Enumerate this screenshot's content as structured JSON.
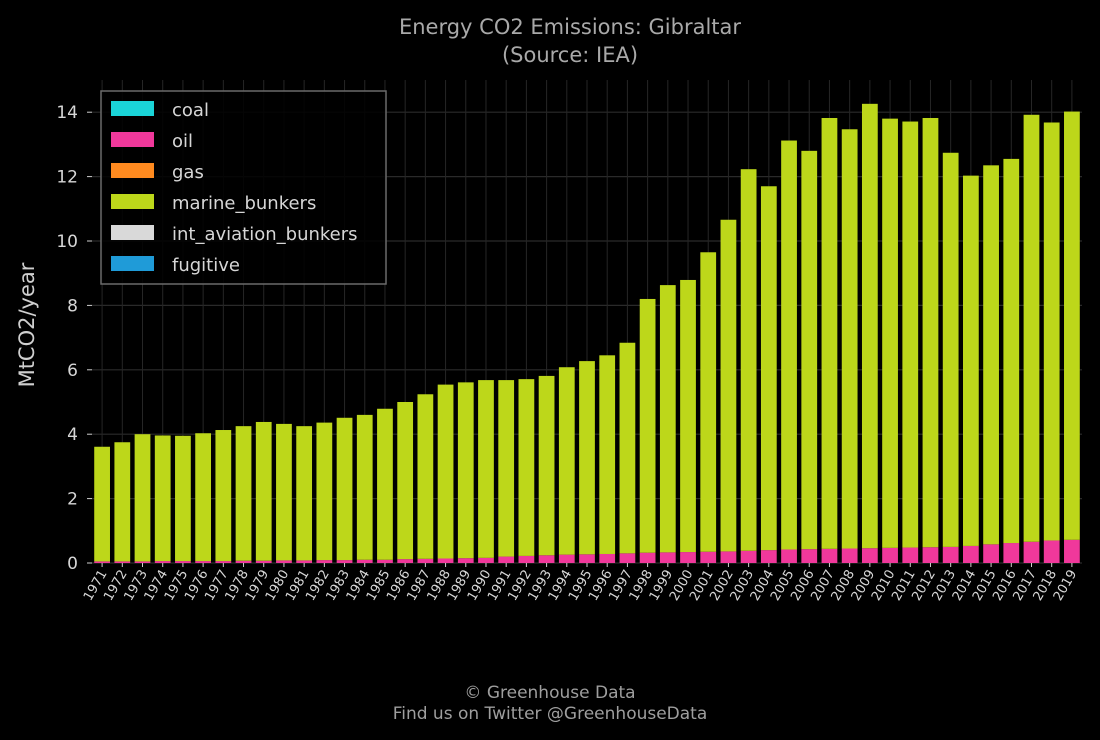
{
  "chart_data": {
    "type": "bar",
    "stacked": true,
    "title": "Energy CO2 Emissions: Gibraltar",
    "subtitle": "(Source: IEA)",
    "xlabel": "",
    "ylabel": "MtCO2/year",
    "ylim": [
      0,
      15
    ],
    "yticks": [
      0,
      2,
      4,
      6,
      8,
      10,
      12,
      14
    ],
    "grid": true,
    "legend_position": "top-left",
    "categories": [
      "1971",
      "1972",
      "1973",
      "1974",
      "1975",
      "1976",
      "1977",
      "1978",
      "1979",
      "1980",
      "1981",
      "1982",
      "1983",
      "1984",
      "1985",
      "1986",
      "1987",
      "1988",
      "1989",
      "1990",
      "1991",
      "1992",
      "1993",
      "1994",
      "1995",
      "1996",
      "1997",
      "1998",
      "1999",
      "2000",
      "2001",
      "2002",
      "2003",
      "2004",
      "2005",
      "2006",
      "2007",
      "2008",
      "2009",
      "2010",
      "2011",
      "2012",
      "2013",
      "2014",
      "2015",
      "2016",
      "2017",
      "2018",
      "2019"
    ],
    "series": [
      {
        "name": "coal",
        "color": "#1ad4d8",
        "values": [
          0,
          0,
          0,
          0,
          0,
          0,
          0,
          0,
          0,
          0,
          0,
          0,
          0,
          0,
          0,
          0,
          0,
          0,
          0,
          0,
          0,
          0,
          0,
          0,
          0,
          0,
          0,
          0,
          0,
          0,
          0,
          0,
          0,
          0,
          0,
          0,
          0,
          0,
          0,
          0,
          0,
          0,
          0,
          0,
          0,
          0,
          0,
          0,
          0
        ]
      },
      {
        "name": "oil",
        "color": "#f0389b",
        "values": [
          0.05,
          0.05,
          0.05,
          0.06,
          0.06,
          0.06,
          0.06,
          0.07,
          0.07,
          0.08,
          0.08,
          0.09,
          0.09,
          0.1,
          0.1,
          0.12,
          0.13,
          0.14,
          0.15,
          0.16,
          0.2,
          0.22,
          0.24,
          0.26,
          0.27,
          0.28,
          0.3,
          0.32,
          0.33,
          0.34,
          0.35,
          0.36,
          0.38,
          0.4,
          0.42,
          0.43,
          0.44,
          0.45,
          0.46,
          0.47,
          0.48,
          0.49,
          0.5,
          0.53,
          0.58,
          0.62,
          0.66,
          0.7,
          0.72
        ]
      },
      {
        "name": "gas",
        "color": "#ff8a1f",
        "values": [
          0,
          0,
          0,
          0,
          0,
          0,
          0,
          0,
          0,
          0,
          0,
          0,
          0,
          0,
          0,
          0,
          0,
          0,
          0,
          0,
          0,
          0,
          0,
          0,
          0,
          0,
          0,
          0,
          0,
          0,
          0,
          0,
          0,
          0,
          0,
          0,
          0,
          0,
          0,
          0,
          0,
          0,
          0,
          0,
          0,
          0,
          0,
          0,
          0
        ]
      },
      {
        "name": "marine_bunkers",
        "color": "#bdd71a",
        "values": [
          3.56,
          3.7,
          3.95,
          3.9,
          3.89,
          3.97,
          4.07,
          4.18,
          4.31,
          4.24,
          4.17,
          4.27,
          4.42,
          4.5,
          4.69,
          4.88,
          5.11,
          5.4,
          5.46,
          5.52,
          5.48,
          5.49,
          5.57,
          5.82,
          6.0,
          6.17,
          6.54,
          7.88,
          8.3,
          8.45,
          9.3,
          10.3,
          11.85,
          11.3,
          12.7,
          12.37,
          13.38,
          13.02,
          13.8,
          13.33,
          13.23,
          13.33,
          12.24,
          11.5,
          11.77,
          11.93,
          13.26,
          12.98,
          13.3
        ]
      },
      {
        "name": "int_aviation_bunkers",
        "color": "#d9d9d9",
        "values": [
          0,
          0,
          0,
          0,
          0,
          0,
          0,
          0,
          0,
          0,
          0,
          0,
          0,
          0,
          0,
          0,
          0,
          0,
          0,
          0,
          0,
          0,
          0,
          0,
          0,
          0,
          0,
          0,
          0,
          0,
          0,
          0,
          0,
          0,
          0,
          0,
          0,
          0,
          0,
          0,
          0,
          0,
          0,
          0,
          0,
          0,
          0,
          0,
          0
        ]
      },
      {
        "name": "fugitive",
        "color": "#1f9bd8",
        "values": [
          0,
          0,
          0,
          0,
          0,
          0,
          0,
          0,
          0,
          0,
          0,
          0,
          0,
          0,
          0,
          0,
          0,
          0,
          0,
          0,
          0,
          0,
          0,
          0,
          0,
          0,
          0,
          0,
          0,
          0,
          0,
          0,
          0,
          0,
          0,
          0,
          0,
          0,
          0,
          0,
          0,
          0,
          0,
          0,
          0,
          0,
          0,
          0,
          0
        ]
      }
    ]
  },
  "footer": {
    "copyright": "© Greenhouse Data",
    "twitter": "Find us on Twitter @GreenhouseData"
  }
}
